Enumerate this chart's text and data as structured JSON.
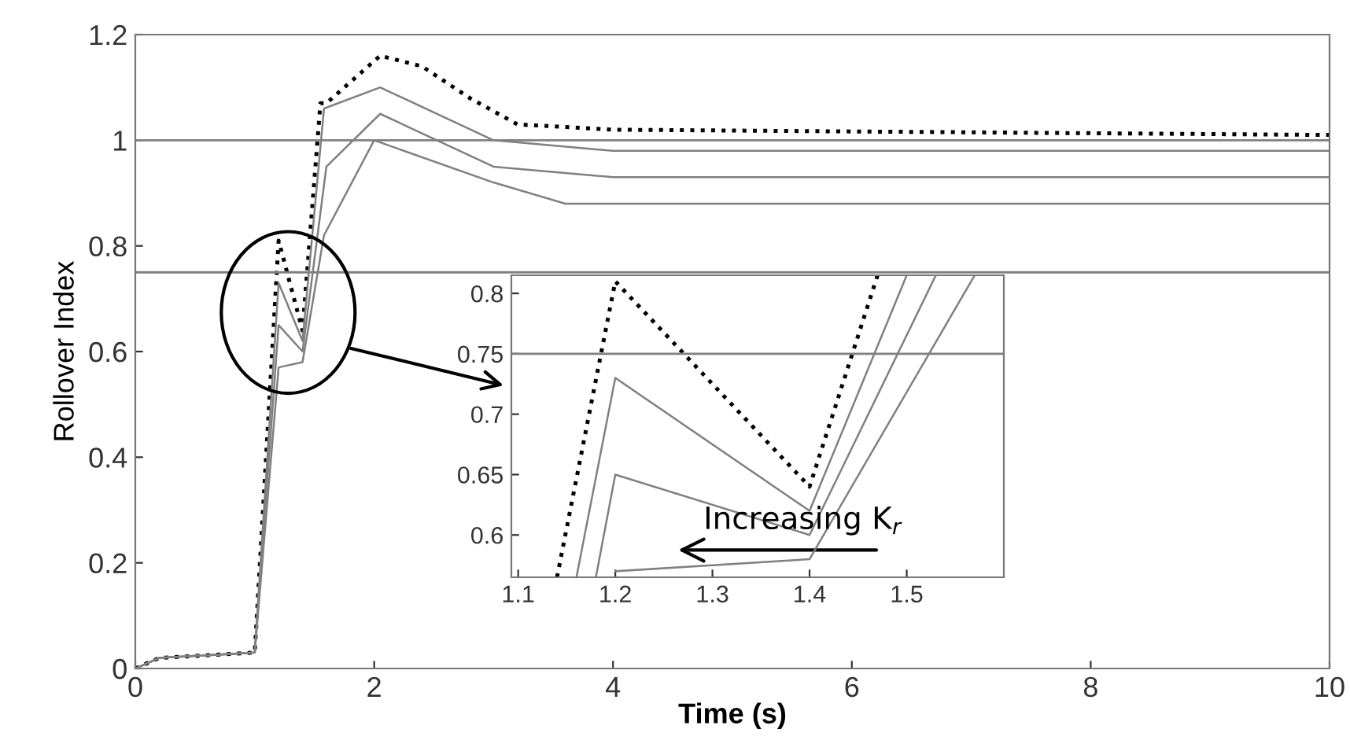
{
  "chart_data": [
    {
      "type": "line",
      "xlabel": "Time (s)",
      "ylabel": "Rollover Index",
      "xlim": [
        0,
        10
      ],
      "ylim": [
        0,
        1.2
      ],
      "xticks": [
        0,
        2,
        4,
        6,
        8,
        10
      ],
      "yticks": [
        0,
        0.2,
        0.4,
        0.6,
        0.8,
        1,
        1.2
      ],
      "grid": false,
      "legend": false,
      "series": [
        {
          "color": "#000000",
          "line_style": "dotted",
          "x": [
            0,
            0.2,
            1.0,
            1.2,
            1.4,
            1.55,
            1.6,
            2.05,
            2.4,
            2.8,
            3.2,
            4,
            10
          ],
          "values": [
            0,
            0.02,
            0.03,
            0.81,
            0.64,
            1.07,
            1.07,
            1.16,
            1.14,
            1.08,
            1.03,
            1.02,
            1.01
          ]
        },
        {
          "color": "#808080",
          "line_style": "solid",
          "x": [
            0,
            0.2,
            1.0,
            1.2,
            1.4,
            1.58,
            2.05,
            3,
            4,
            10
          ],
          "values": [
            0,
            0.02,
            0.03,
            0.73,
            0.62,
            1.06,
            1.1,
            1.0,
            0.98,
            0.98
          ]
        },
        {
          "color": "#808080",
          "line_style": "solid",
          "x": [
            0,
            0.2,
            1.0,
            1.2,
            1.4,
            1.6,
            2.05,
            3,
            4,
            10
          ],
          "values": [
            0,
            0.02,
            0.03,
            0.65,
            0.6,
            0.95,
            1.05,
            0.95,
            0.93,
            0.93
          ]
        },
        {
          "color": "#808080",
          "line_style": "solid",
          "x": [
            0,
            0.2,
            1.0,
            1.2,
            1.4,
            1.58,
            2.0,
            3,
            3.6,
            10
          ],
          "values": [
            0,
            0.02,
            0.03,
            0.57,
            0.58,
            0.82,
            1.0,
            0.92,
            0.88,
            0.88
          ]
        }
      ],
      "ref_lines": [
        {
          "axis": "y",
          "value": 1,
          "color": "#808080"
        },
        {
          "axis": "y",
          "value": 0.75,
          "color": "#808080"
        }
      ]
    },
    {
      "type": "line",
      "xlim": [
        1.093,
        1.6
      ],
      "ylim": [
        0.565,
        0.815
      ],
      "xticks": [
        1.1,
        1.2,
        1.3,
        1.4,
        1.5
      ],
      "yticks": [
        0.6,
        0.65,
        0.7,
        0.75,
        0.8
      ],
      "grid": false,
      "legend": false,
      "annotations": [
        "Increasing K$_{r}$"
      ],
      "series": [
        {
          "color": "#000000",
          "line_style": "dotted",
          "x": [
            1.14,
            1.2,
            1.4,
            1.47
          ],
          "values": [
            0.565,
            0.81,
            0.64,
            0.815
          ]
        },
        {
          "color": "#808080",
          "line_style": "solid",
          "x": [
            1.16,
            1.2,
            1.4,
            1.5
          ],
          "values": [
            0.565,
            0.73,
            0.62,
            0.815
          ]
        },
        {
          "color": "#808080",
          "line_style": "solid",
          "x": [
            1.18,
            1.2,
            1.4,
            1.53
          ],
          "values": [
            0.565,
            0.65,
            0.6,
            0.815
          ]
        },
        {
          "color": "#808080",
          "line_style": "solid",
          "x": [
            1.2,
            1.4,
            1.57
          ],
          "values": [
            0.57,
            0.58,
            0.815
          ]
        }
      ],
      "ref_lines": [
        {
          "axis": "y",
          "value": 0.75,
          "color": "#808080"
        }
      ]
    }
  ]
}
